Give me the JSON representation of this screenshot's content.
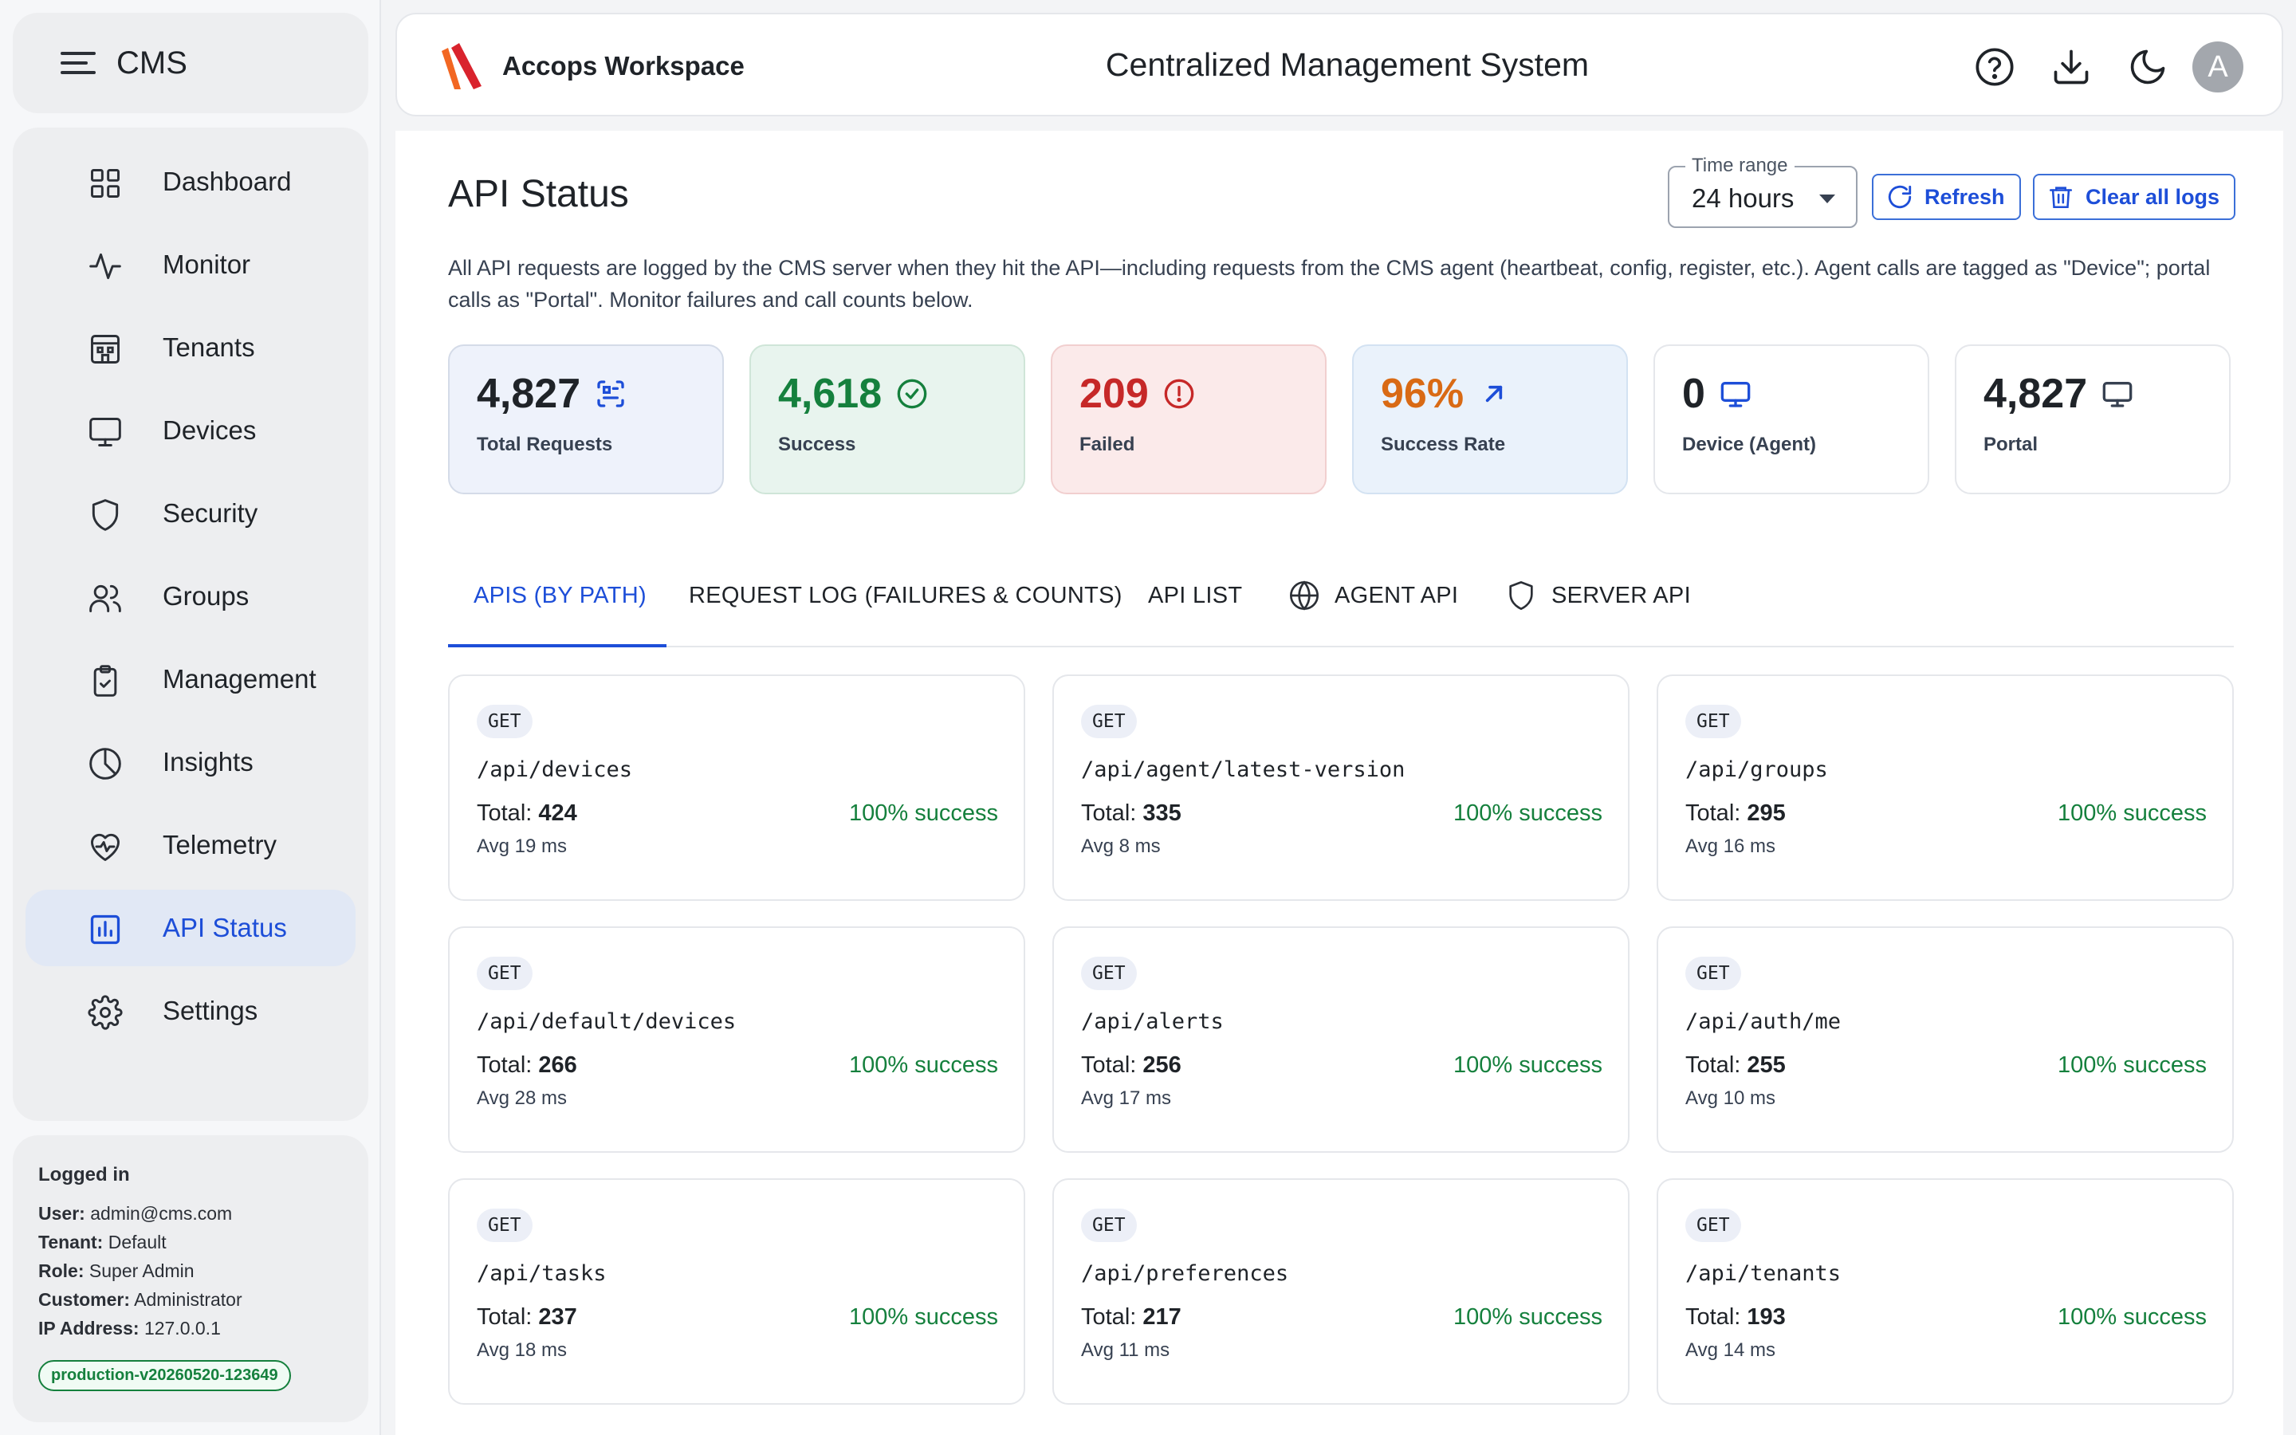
{
  "sidebar": {
    "brand": "CMS",
    "items": [
      {
        "label": "Dashboard",
        "icon": "dashboard-grid-icon"
      },
      {
        "label": "Monitor",
        "icon": "pulse-icon"
      },
      {
        "label": "Tenants",
        "icon": "building-icon"
      },
      {
        "label": "Devices",
        "icon": "monitor-icon"
      },
      {
        "label": "Security",
        "icon": "shield-icon"
      },
      {
        "label": "Groups",
        "icon": "users-icon"
      },
      {
        "label": "Management",
        "icon": "clipboard-check-icon"
      },
      {
        "label": "Insights",
        "icon": "pie-chart-icon"
      },
      {
        "label": "Telemetry",
        "icon": "heart-pulse-icon"
      },
      {
        "label": "API Status",
        "icon": "bar-chart-icon",
        "active": true
      },
      {
        "label": "Settings",
        "icon": "gear-icon"
      }
    ],
    "login": {
      "heading": "Logged in",
      "user_label": "User:",
      "user": "admin@cms.com",
      "tenant_label": "Tenant:",
      "tenant": "Default",
      "role_label": "Role:",
      "role": "Super Admin",
      "customer_label": "Customer:",
      "customer": "Administrator",
      "ip_label": "IP Address:",
      "ip": "127.0.0.1",
      "version": "production-v20260520-123649"
    }
  },
  "header": {
    "workspace": "Accops Workspace",
    "title": "Centralized Management System",
    "avatar_initial": "A",
    "icons": [
      "help-circle-icon",
      "download-icon",
      "moon-icon"
    ]
  },
  "page": {
    "title": "API Status",
    "time_range_label": "Time range",
    "time_range_value": "24 hours",
    "refresh_label": "Refresh",
    "clear_label": "Clear all logs",
    "description": "All API requests are logged by the CMS server when they hit the API—including requests from the CMS agent (heartbeat, config, register, etc.). Agent calls are tagged as \"Device\"; portal calls as \"Portal\". Monitor failures and call counts below."
  },
  "stats": [
    {
      "value": "4,827",
      "label": "Total Requests",
      "icon": "scan-icon"
    },
    {
      "value": "4,618",
      "label": "Success",
      "icon": "check-circle-icon"
    },
    {
      "value": "209",
      "label": "Failed",
      "icon": "alert-circle-icon"
    },
    {
      "value": "96%",
      "label": "Success Rate",
      "icon": "arrow-up-right-icon"
    },
    {
      "value": "0",
      "label": "Device (Agent)",
      "icon": "monitor-icon"
    },
    {
      "value": "4,827",
      "label": "Portal",
      "icon": "monitor-icon"
    }
  ],
  "tabs": [
    {
      "label": "APIS (BY PATH)",
      "active": true
    },
    {
      "label": "REQUEST LOG (FAILURES & COUNTS)"
    },
    {
      "label": "API LIST"
    },
    {
      "label": "AGENT API",
      "icon": "globe-icon"
    },
    {
      "label": "SERVER API",
      "icon": "shield-icon"
    }
  ],
  "apis": [
    {
      "method": "GET",
      "path": "/api/devices",
      "total_label": "Total:",
      "total": "424",
      "avg": "Avg 19 ms",
      "success": "100% success"
    },
    {
      "method": "GET",
      "path": "/api/agent/latest-version",
      "total_label": "Total:",
      "total": "335",
      "avg": "Avg 8 ms",
      "success": "100% success"
    },
    {
      "method": "GET",
      "path": "/api/groups",
      "total_label": "Total:",
      "total": "295",
      "avg": "Avg 16 ms",
      "success": "100% success"
    },
    {
      "method": "GET",
      "path": "/api/default/devices",
      "total_label": "Total:",
      "total": "266",
      "avg": "Avg 28 ms",
      "success": "100% success"
    },
    {
      "method": "GET",
      "path": "/api/alerts",
      "total_label": "Total:",
      "total": "256",
      "avg": "Avg 17 ms",
      "success": "100% success"
    },
    {
      "method": "GET",
      "path": "/api/auth/me",
      "total_label": "Total:",
      "total": "255",
      "avg": "Avg 10 ms",
      "success": "100% success"
    },
    {
      "method": "GET",
      "path": "/api/tasks",
      "total_label": "Total:",
      "total": "237",
      "avg": "Avg 18 ms",
      "success": "100% success"
    },
    {
      "method": "GET",
      "path": "/api/preferences",
      "total_label": "Total:",
      "total": "217",
      "avg": "Avg 11 ms",
      "success": "100% success"
    },
    {
      "method": "GET",
      "path": "/api/tenants",
      "total_label": "Total:",
      "total": "193",
      "avg": "Avg 14 ms",
      "success": "100% success"
    }
  ],
  "colors": {
    "accent": "#1d4ed8",
    "success": "#15803d",
    "failed": "#c62828",
    "rate": "#d96a14",
    "logo_orange": "#f26722",
    "logo_red": "#d9232d"
  }
}
